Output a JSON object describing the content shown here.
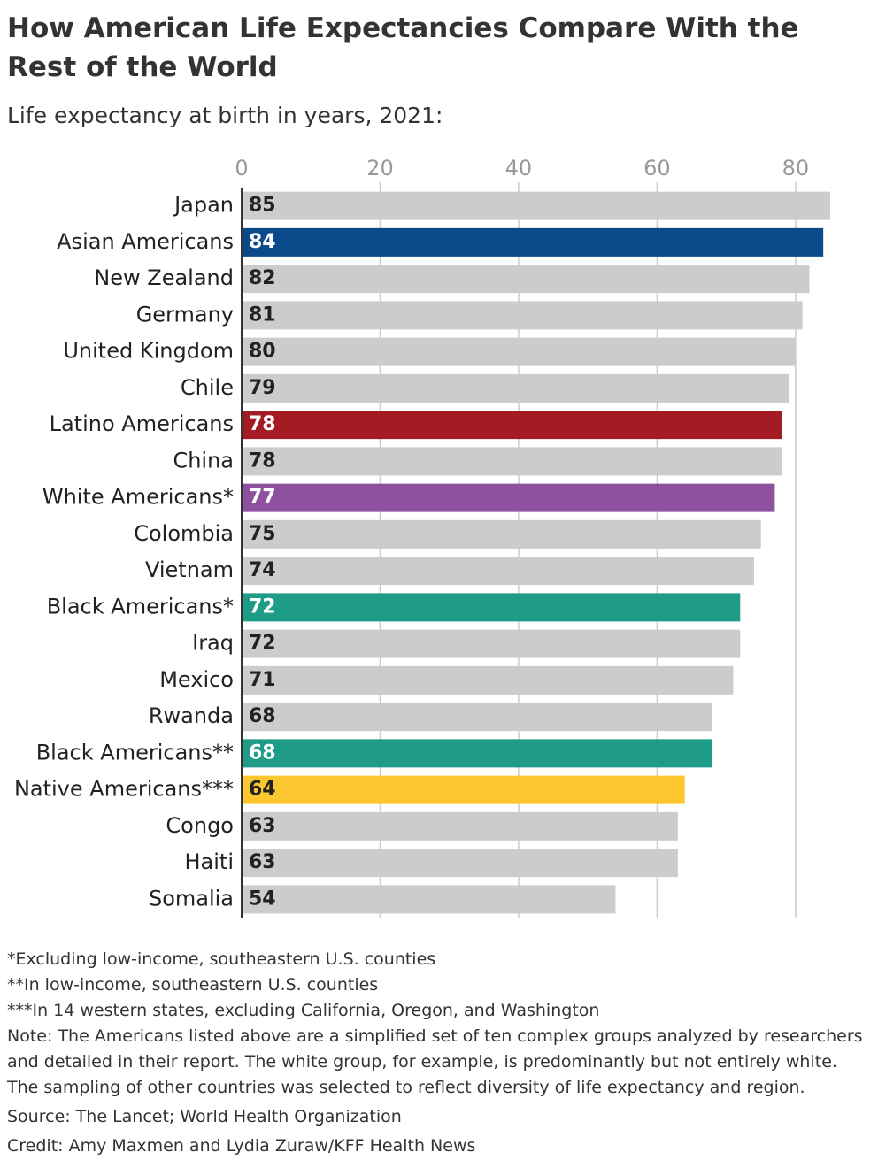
{
  "chart_data": {
    "type": "bar",
    "orientation": "horizontal",
    "title": "How American Life Expectancies Compare With the Rest of the World",
    "subtitle": "Life expectancy at birth in years, 2021:",
    "categories": [
      "Japan",
      "Asian Americans",
      "New Zealand",
      "Germany",
      "United Kingdom",
      "Chile",
      "Latino Americans",
      "China",
      "White Americans*",
      "Colombia",
      "Vietnam",
      "Black Americans*",
      "Iraq",
      "Mexico",
      "Rwanda",
      "Black Americans**",
      "Native Americans***",
      "Congo",
      "Haiti",
      "Somalia"
    ],
    "values": [
      85,
      84,
      82,
      81,
      80,
      79,
      78,
      78,
      77,
      75,
      74,
      72,
      72,
      71,
      68,
      68,
      64,
      63,
      63,
      54
    ],
    "colors": [
      "#cccccc",
      "#0a4a8a",
      "#cccccc",
      "#cccccc",
      "#cccccc",
      "#cccccc",
      "#a31c24",
      "#cccccc",
      "#8e51a0",
      "#cccccc",
      "#cccccc",
      "#1f9c88",
      "#cccccc",
      "#cccccc",
      "#cccccc",
      "#1f9c88",
      "#fcc62f",
      "#cccccc",
      "#cccccc",
      "#cccccc"
    ],
    "xlim": [
      0,
      85
    ],
    "xticks": [
      0,
      20,
      40,
      60,
      80
    ],
    "grid": true,
    "notes": [
      "*Excluding low-income, southeastern U.S. counties",
      "**In low-income, southeastern U.S. counties",
      "***In 14 western states, excluding California, Oregon, and Washington",
      "Note: The Americans listed above are a simplified set of ten complex groups analyzed by researchers and detailed in their report. The white group, for example, is predominantly but not entirely white. The sampling of other countries was selected to reflect diversity of life expectancy and region."
    ],
    "source": "Source: The Lancet; World Health Organization",
    "credit": "Credit: Amy Maxmen and Lydia Zuraw/KFF Health News"
  }
}
